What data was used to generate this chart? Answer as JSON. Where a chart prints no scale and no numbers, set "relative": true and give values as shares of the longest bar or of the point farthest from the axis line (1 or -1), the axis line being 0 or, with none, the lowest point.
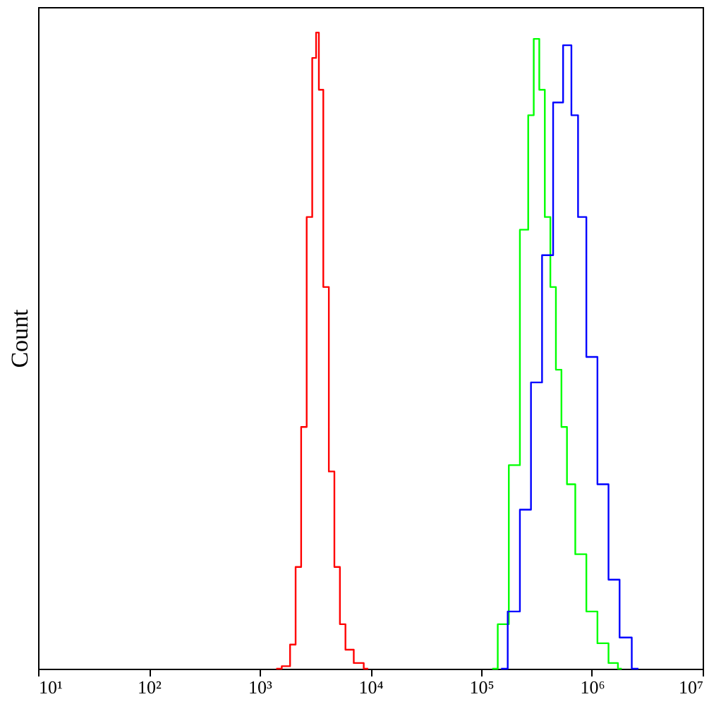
{
  "chart_data": {
    "type": "step",
    "ylabel": "Count",
    "relative": true,
    "log": "x",
    "grid": false,
    "xlim": [
      10,
      10000000
    ],
    "xticks": [
      {
        "value": 10,
        "label": "10¹"
      },
      {
        "value": 100,
        "label": "10²"
      },
      {
        "value": 1000,
        "label": "10³"
      },
      {
        "value": 10000,
        "label": "10⁴"
      },
      {
        "value": 100000,
        "label": "10⁵"
      },
      {
        "value": 1000000,
        "label": "10⁶"
      },
      {
        "value": 10000000,
        "label": "10⁷"
      }
    ],
    "series": [
      {
        "color": "#ff0000",
        "x": [
          1413,
          1778,
          1995,
          2239,
          2512,
          2818,
          3162,
          3311,
          3548,
          3981,
          4467,
          5012,
          5623,
          6310,
          7943,
          9550
        ],
        "values": [
          0,
          0.004,
          0.038,
          0.16,
          0.38,
          0.71,
          0.96,
          1,
          0.91,
          0.6,
          0.31,
          0.16,
          0.07,
          0.03,
          0.009,
          0
        ]
      },
      {
        "color": "#00ff00",
        "x": [
          125900,
          158500,
          199500,
          251200,
          281800,
          316200,
          354800,
          398100,
          446700,
          501200,
          562300,
          631000,
          794300,
          1000000,
          1259000,
          1585000,
          1862000
        ],
        "values": [
          0,
          0.07,
          0.32,
          0.69,
          0.87,
          0.99,
          0.91,
          0.71,
          0.6,
          0.47,
          0.38,
          0.29,
          0.18,
          0.09,
          0.04,
          0.009,
          0
        ]
      },
      {
        "color": "#0000ff",
        "x": [
          151400,
          199500,
          251200,
          316200,
          398100,
          501200,
          602600,
          707900,
          794300,
          1000000,
          1259000,
          1585000,
          1995000,
          2630000
        ],
        "values": [
          0,
          0.09,
          0.25,
          0.45,
          0.65,
          0.89,
          0.98,
          0.87,
          0.71,
          0.49,
          0.29,
          0.14,
          0.049,
          0
        ]
      }
    ]
  }
}
